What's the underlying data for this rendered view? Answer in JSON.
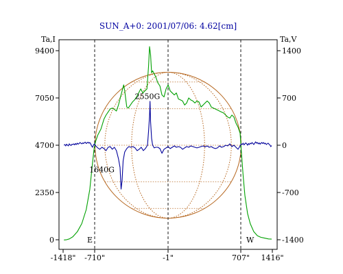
{
  "chart_data": {
    "type": "line",
    "title": "SUN_A+0: 2001/07/06: 4.62[cm]",
    "ylabel_left": "Ta,I",
    "ylabel_right": "Ta,V",
    "x_ticks": [
      "-1418\"",
      "-710\"",
      "-1\"",
      "707\"",
      "1416\""
    ],
    "x_tick_values": [
      -1418,
      -710,
      -1,
      707,
      1416
    ],
    "xlim": [
      -1418,
      1416
    ],
    "y_left_ticks": [
      "9400",
      "7050",
      "4700",
      "2350",
      "0"
    ],
    "y_left_tick_values": [
      9400,
      7050,
      4700,
      2350,
      0
    ],
    "ylim_left": [
      0,
      9400
    ],
    "y_right_ticks": [
      "1400",
      "700",
      "0",
      "-700",
      "-1400"
    ],
    "y_right_tick_values": [
      1400,
      700,
      0,
      -700,
      -1400
    ],
    "ylim_right": [
      -1400,
      1400
    ],
    "limb_markers": [
      {
        "label": "E",
        "x": -710
      },
      {
        "label": "W",
        "x": 707
      }
    ],
    "center_marker": -1,
    "annotations": [
      {
        "text": "2550G",
        "x": -200,
        "y": 7000
      },
      {
        "text": "1640G",
        "x": -640,
        "y": 3350
      }
    ],
    "series": [
      {
        "axis": "left",
        "color": "#00a000",
        "points": [
          [
            -1400,
            -10
          ],
          [
            -1350,
            -5
          ],
          [
            -1280,
            40
          ],
          [
            -1200,
            150
          ],
          [
            -1100,
            400
          ],
          [
            -1000,
            800
          ],
          [
            -900,
            1500
          ],
          [
            -820,
            2500
          ],
          [
            -760,
            3800
          ],
          [
            -720,
            4600
          ],
          [
            -700,
            4900
          ],
          [
            -680,
            5200
          ],
          [
            -650,
            5500
          ],
          [
            -620,
            6000
          ],
          [
            -600,
            6200
          ],
          [
            -580,
            6350
          ],
          [
            -560,
            6500
          ],
          [
            -540,
            6550
          ],
          [
            -520,
            6480
          ],
          [
            -500,
            6400
          ],
          [
            -480,
            6700
          ],
          [
            -460,
            7100
          ],
          [
            -445,
            7400
          ],
          [
            -430,
            7700
          ],
          [
            -420,
            7400
          ],
          [
            -410,
            7000
          ],
          [
            -400,
            6600
          ],
          [
            -385,
            6550
          ],
          [
            -365,
            6700
          ],
          [
            -345,
            6850
          ],
          [
            -325,
            6950
          ],
          [
            -305,
            7100
          ],
          [
            -285,
            7300
          ],
          [
            -265,
            7500
          ],
          [
            -245,
            7300
          ],
          [
            -225,
            7400
          ],
          [
            -205,
            7500
          ],
          [
            -190,
            8600
          ],
          [
            -180,
            9600
          ],
          [
            -170,
            9200
          ],
          [
            -160,
            8300
          ],
          [
            -150,
            8400
          ],
          [
            -140,
            8300
          ],
          [
            -120,
            8100
          ],
          [
            -100,
            7800
          ],
          [
            -80,
            7650
          ],
          [
            -60,
            7200
          ],
          [
            -40,
            7100
          ],
          [
            -20,
            7500
          ],
          [
            0,
            7700
          ],
          [
            20,
            7400
          ],
          [
            40,
            7300
          ],
          [
            60,
            7200
          ],
          [
            80,
            7300
          ],
          [
            100,
            7000
          ],
          [
            120,
            6950
          ],
          [
            140,
            6900
          ],
          [
            160,
            6700
          ],
          [
            180,
            6800
          ],
          [
            200,
            7050
          ],
          [
            220,
            6950
          ],
          [
            240,
            6900
          ],
          [
            260,
            6800
          ],
          [
            280,
            6900
          ],
          [
            300,
            6850
          ],
          [
            320,
            6600
          ],
          [
            340,
            6700
          ],
          [
            360,
            6800
          ],
          [
            380,
            6900
          ],
          [
            400,
            6800
          ],
          [
            420,
            6600
          ],
          [
            440,
            6550
          ],
          [
            460,
            6500
          ],
          [
            480,
            6450
          ],
          [
            500,
            6400
          ],
          [
            520,
            6350
          ],
          [
            540,
            6300
          ],
          [
            560,
            6200
          ],
          [
            580,
            6100
          ],
          [
            600,
            6050
          ],
          [
            620,
            6200
          ],
          [
            640,
            6100
          ],
          [
            660,
            5800
          ],
          [
            680,
            5600
          ],
          [
            700,
            5300
          ],
          [
            720,
            4400
          ],
          [
            760,
            3200
          ],
          [
            800,
            2200
          ],
          [
            860,
            1300
          ],
          [
            920,
            800
          ],
          [
            1000,
            400
          ],
          [
            1080,
            200
          ],
          [
            1160,
            120
          ],
          [
            1250,
            80
          ],
          [
            1330,
            40
          ],
          [
            1400,
            30
          ]
        ]
      },
      {
        "axis": "right",
        "color": "#00009a",
        "points": [
          [
            -1400,
            0
          ],
          [
            -1380,
            10
          ],
          [
            -1360,
            -10
          ],
          [
            -1340,
            15
          ],
          [
            -1320,
            0
          ],
          [
            -1300,
            -10
          ],
          [
            -1280,
            20
          ],
          [
            -1260,
            5
          ],
          [
            -1240,
            -5
          ],
          [
            -1220,
            15
          ],
          [
            -1200,
            10
          ],
          [
            -1180,
            20
          ],
          [
            -1160,
            5
          ],
          [
            -1140,
            25
          ],
          [
            -1120,
            10
          ],
          [
            -1100,
            30
          ],
          [
            -1080,
            15
          ],
          [
            -1060,
            25
          ],
          [
            -1040,
            40
          ],
          [
            -1020,
            30
          ],
          [
            -1000,
            20
          ],
          [
            -980,
            35
          ],
          [
            -960,
            25
          ],
          [
            -940,
            40
          ],
          [
            -920,
            45
          ],
          [
            -900,
            25
          ],
          [
            -880,
            35
          ],
          [
            -860,
            45
          ],
          [
            -840,
            30
          ],
          [
            -820,
            40
          ],
          [
            -800,
            20
          ],
          [
            -780,
            -10
          ],
          [
            -760,
            -30
          ],
          [
            -740,
            0
          ],
          [
            -720,
            20
          ],
          [
            -700,
            -10
          ],
          [
            -680,
            -40
          ],
          [
            -660,
            -60
          ],
          [
            -640,
            -30
          ],
          [
            -620,
            -50
          ],
          [
            -600,
            -80
          ],
          [
            -580,
            -30
          ],
          [
            -560,
            -20
          ],
          [
            -540,
            -60
          ],
          [
            -520,
            -30
          ],
          [
            -500,
            -80
          ],
          [
            -480,
            -200
          ],
          [
            -465,
            -330
          ],
          [
            -455,
            -650
          ],
          [
            -445,
            -520
          ],
          [
            -435,
            -230
          ],
          [
            -420,
            -100
          ],
          [
            -400,
            -50
          ],
          [
            -380,
            -20
          ],
          [
            -360,
            -30
          ],
          [
            -340,
            -20
          ],
          [
            -320,
            -40
          ],
          [
            -300,
            -80
          ],
          [
            -280,
            -60
          ],
          [
            -260,
            -30
          ],
          [
            -240,
            -80
          ],
          [
            -220,
            -50
          ],
          [
            -200,
            0
          ],
          [
            -190,
            200
          ],
          [
            -180,
            430
          ],
          [
            -175,
            650
          ],
          [
            -170,
            350
          ],
          [
            -160,
            100
          ],
          [
            -150,
            0
          ],
          [
            -135,
            -40
          ],
          [
            -120,
            -30
          ],
          [
            -100,
            -30
          ],
          [
            -80,
            -50
          ],
          [
            -60,
            -120
          ],
          [
            -40,
            -60
          ],
          [
            -20,
            -40
          ],
          [
            0,
            -20
          ],
          [
            20,
            -50
          ],
          [
            40,
            -30
          ],
          [
            60,
            -10
          ],
          [
            80,
            -30
          ],
          [
            100,
            -20
          ],
          [
            120,
            -30
          ],
          [
            140,
            -60
          ],
          [
            160,
            -40
          ],
          [
            180,
            -20
          ],
          [
            200,
            -30
          ],
          [
            220,
            -10
          ],
          [
            240,
            -20
          ],
          [
            260,
            -30
          ],
          [
            280,
            -40
          ],
          [
            300,
            -30
          ],
          [
            320,
            -20
          ],
          [
            340,
            -10
          ],
          [
            360,
            -25
          ],
          [
            380,
            -10
          ],
          [
            400,
            -30
          ],
          [
            420,
            -20
          ],
          [
            440,
            -40
          ],
          [
            460,
            -50
          ],
          [
            480,
            -40
          ],
          [
            500,
            -10
          ],
          [
            520,
            -30
          ],
          [
            540,
            -20
          ],
          [
            560,
            0
          ],
          [
            580,
            -10
          ],
          [
            600,
            20
          ],
          [
            620,
            -20
          ],
          [
            640,
            0
          ],
          [
            660,
            -30
          ],
          [
            680,
            -60
          ],
          [
            700,
            -10
          ],
          [
            720,
            20
          ],
          [
            740,
            10
          ],
          [
            760,
            30
          ],
          [
            780,
            5
          ],
          [
            800,
            20
          ],
          [
            820,
            35
          ],
          [
            840,
            20
          ],
          [
            860,
            0
          ],
          [
            880,
            25
          ],
          [
            900,
            10
          ],
          [
            920,
            30
          ],
          [
            940,
            20
          ],
          [
            960,
            40
          ],
          [
            980,
            25
          ],
          [
            1000,
            10
          ],
          [
            1020,
            30
          ],
          [
            1040,
            50
          ],
          [
            1060,
            30
          ],
          [
            1080,
            40
          ],
          [
            1100,
            20
          ],
          [
            1120,
            35
          ],
          [
            1140,
            15
          ],
          [
            1160,
            30
          ],
          [
            1180,
            40
          ],
          [
            1200,
            25
          ],
          [
            1220,
            40
          ],
          [
            1240,
            20
          ],
          [
            1260,
            30
          ],
          [
            1280,
            10
          ],
          [
            1300,
            20
          ],
          [
            1320,
            30
          ],
          [
            1340,
            15
          ],
          [
            1360,
            5
          ],
          [
            1380,
            -20
          ],
          [
            1400,
            -5
          ]
        ]
      }
    ]
  }
}
